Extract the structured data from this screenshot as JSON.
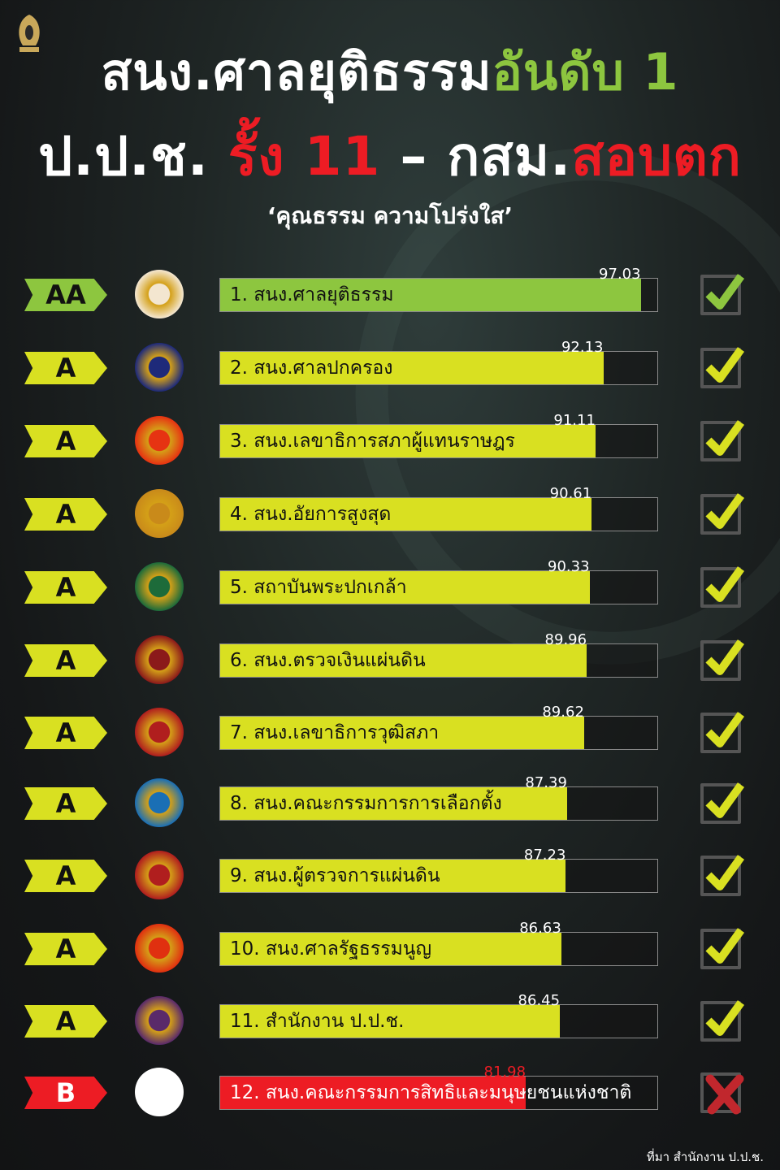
{
  "header": {
    "title_line1_white": "สนง.ศาลยุติธรรม",
    "title_line1_green": "อันดับ 1",
    "title_line2_white_a": "ป.ป.ช.",
    "title_line2_red_a": "รั้ง 11",
    "title_line2_white_b": "–  กสม.",
    "title_line2_red_b": "สอบตก",
    "subtitle": "‘คุณธรรม  ความโปร่งใส’"
  },
  "colors": {
    "aa": "#8dc63f",
    "a": "#d9e021",
    "b": "#ed1c24",
    "title_green": "#8dc63f",
    "title_red": "#ed1c24"
  },
  "chart_data": {
    "type": "bar",
    "orientation": "horizontal",
    "xlim": [
      42,
      99.2
    ],
    "categories": [
      "1. สนง.ศาลยุติธรรม",
      "2. สนง.ศาลปกครอง",
      "3. สนง.เลขาธิการสภาผู้แทนราษฎร",
      "4. สนง.อัยการสูงสุด",
      "5. สถาบันพระปกเกล้า",
      "6. สนง.ตรวจเงินแผ่นดิน",
      "7. สนง.เลขาธิการวุฒิสภา",
      "8. สนง.คณะกรรมการการเลือกตั้ง",
      "9. สนง.ผู้ตรวจการแผ่นดิน",
      "10. สนง.ศาลรัฐธรรมนูญ",
      "11. สำนักงาน ป.ป.ช.",
      "12. สนง.คณะกรรมการสิทธิและมนุษยชนแห่งชาติ"
    ],
    "values": [
      97.03,
      92.13,
      91.11,
      90.61,
      90.33,
      89.96,
      89.62,
      87.39,
      87.23,
      86.63,
      86.45,
      81.98
    ],
    "value_labels": [
      "97.03",
      "92.13",
      "91.11",
      "90.61",
      "90.33",
      "89.96",
      "89.62",
      "87.39",
      "87.23",
      "86.63",
      "86.45",
      "81.98"
    ],
    "grades": [
      "AA",
      "A",
      "A",
      "A",
      "A",
      "A",
      "A",
      "A",
      "A",
      "A",
      "A",
      "B"
    ],
    "status": [
      "pass",
      "pass",
      "pass",
      "pass",
      "pass",
      "pass",
      "pass",
      "pass",
      "pass",
      "pass",
      "pass",
      "fail"
    ],
    "emblem_colors": [
      "#f3e6d0",
      "#1e2a7a",
      "#e63312",
      "#c98a1a",
      "#1d6b3a",
      "#8b1a1a",
      "#b01e1e",
      "#1a6fb5",
      "#b01e1e",
      "#e03010",
      "#5a2a6a",
      "#ffffff"
    ]
  },
  "footer": {
    "source": "ที่มา สำนักงาน ป.ป.ช."
  }
}
